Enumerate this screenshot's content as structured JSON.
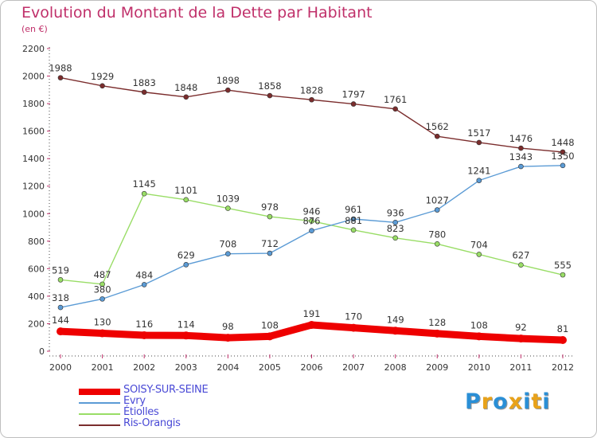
{
  "title": "Evolution du Montant de la Dette par Habitant",
  "subtitle": "(en €)",
  "logo": {
    "text": "Proxiti",
    "colors": [
      "#2a8fd6",
      "#e8a21a",
      "#2a8fd6",
      "#e8a21a",
      "#2a8fd6",
      "#e8a21a",
      "#2a8fd6"
    ]
  },
  "chart_data": {
    "type": "line",
    "title": "Evolution du Montant de la Dette par Habitant",
    "ylabel": "(en €)",
    "xlabel": "",
    "x": [
      "2000",
      "2001",
      "2002",
      "2003",
      "2004",
      "2005",
      "2006",
      "2007",
      "2008",
      "2009",
      "2010",
      "2011",
      "2012"
    ],
    "ylim": [
      0,
      2200
    ],
    "yticks": [
      0,
      200,
      400,
      600,
      800,
      1000,
      1200,
      1400,
      1600,
      1800,
      2000,
      2200
    ],
    "grid": false,
    "legend_position": "bottom-left",
    "series": [
      {
        "name": "SOISY-SUR-SEINE",
        "color": "#ee0000",
        "highlight": true,
        "values": [
          144,
          130,
          116,
          114,
          98,
          108,
          191,
          170,
          149,
          128,
          108,
          92,
          81
        ]
      },
      {
        "name": "Evry",
        "color": "#5b9bd5",
        "highlight": false,
        "values": [
          318,
          380,
          484,
          629,
          708,
          712,
          876,
          961,
          936,
          1027,
          1241,
          1343,
          1350
        ]
      },
      {
        "name": "Étiolles",
        "color": "#99dd66",
        "highlight": false,
        "values": [
          519,
          487,
          1145,
          1101,
          1039,
          978,
          946,
          881,
          823,
          780,
          704,
          627,
          555
        ]
      },
      {
        "name": "Ris-Orangis",
        "color": "#7b2d2d",
        "highlight": false,
        "values": [
          1988,
          1929,
          1883,
          1848,
          1898,
          1858,
          1828,
          1797,
          1761,
          1562,
          1517,
          1476,
          1448
        ]
      }
    ]
  }
}
